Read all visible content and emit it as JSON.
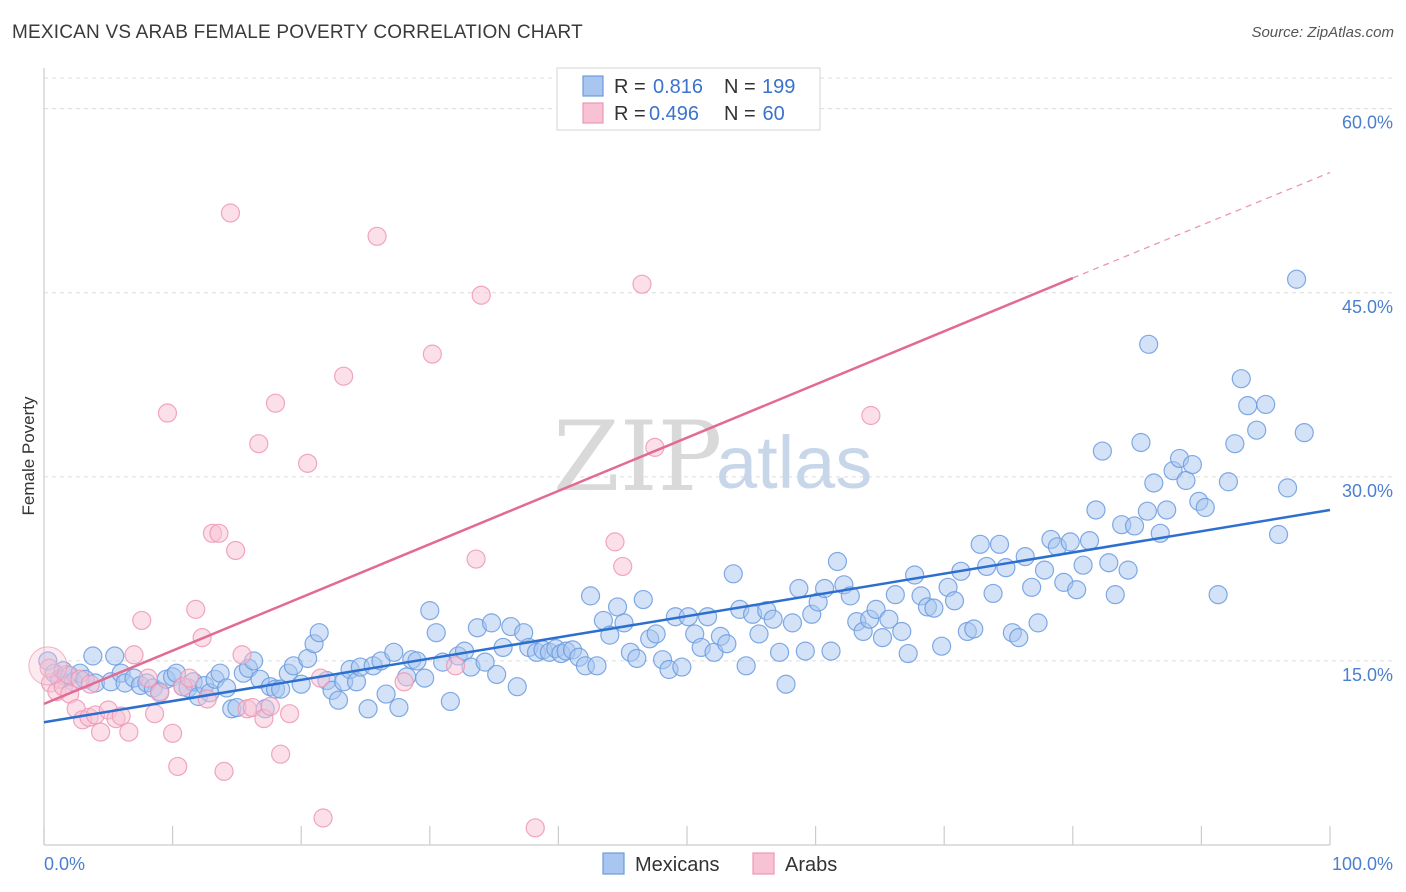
{
  "title": "MEXICAN VS ARAB FEMALE POVERTY CORRELATION CHART",
  "source": "Source: ZipAtlas.com",
  "watermark": {
    "part1": "ZIP",
    "part2": "atlas"
  },
  "chart_data": {
    "type": "scatter",
    "ylabel": "Female Poverty",
    "xlim": [
      0,
      100
    ],
    "ylim": [
      0,
      62.5
    ],
    "x_tick_labels": {
      "min": "0.0%",
      "max": "100.0%"
    },
    "y_ticks": [
      {
        "value": 15,
        "label": "15.0%"
      },
      {
        "value": 30,
        "label": "30.0%"
      },
      {
        "value": 45,
        "label": "45.0%"
      },
      {
        "value": 60,
        "label": "60.0%"
      }
    ],
    "grid": true,
    "legend_position": "top-center",
    "legend_stats": [
      {
        "r_label": "R = ",
        "r_value": "0.816",
        "n_label": "N = ",
        "n_value": "199"
      },
      {
        "r_label": "R = ",
        "r_value": "0.496",
        "n_label": "N = ",
        "n_value": " 60"
      }
    ],
    "series": [
      {
        "name": "Mexicans",
        "color": "#6b9be0",
        "fill": "#a8c6f0",
        "trend": {
          "x": [
            0,
            100
          ],
          "y": [
            10.0,
            27.3
          ],
          "color": "#2c6fcf"
        },
        "points": [
          [
            0.3,
            15.0
          ],
          [
            0.8,
            14.0
          ],
          [
            1.2,
            13.5
          ],
          [
            1.5,
            14.2
          ],
          [
            2.0,
            13.8
          ],
          [
            2.3,
            13.3
          ],
          [
            2.8,
            14.0
          ],
          [
            3.2,
            13.5
          ],
          [
            4.0,
            13.2
          ],
          [
            3.8,
            15.4
          ],
          [
            5.2,
            13.3
          ],
          [
            5.5,
            15.4
          ],
          [
            6.0,
            14.0
          ],
          [
            6.3,
            13.2
          ],
          [
            7.0,
            13.6
          ],
          [
            7.5,
            13.0
          ],
          [
            8.0,
            13.2
          ],
          [
            8.5,
            12.8
          ],
          [
            9.0,
            12.5
          ],
          [
            9.5,
            13.5
          ],
          [
            10.0,
            13.7
          ],
          [
            10.3,
            14.0
          ],
          [
            10.8,
            12.9
          ],
          [
            11.2,
            12.8
          ],
          [
            11.6,
            13.3
          ],
          [
            12.0,
            12.1
          ],
          [
            12.5,
            13.0
          ],
          [
            12.9,
            12.4
          ],
          [
            13.3,
            13.5
          ],
          [
            13.7,
            14.0
          ],
          [
            14.2,
            12.8
          ],
          [
            14.6,
            11.1
          ],
          [
            15.0,
            11.2
          ],
          [
            15.5,
            14.0
          ],
          [
            15.9,
            14.4
          ],
          [
            16.3,
            15.0
          ],
          [
            16.8,
            13.5
          ],
          [
            17.2,
            11.1
          ],
          [
            17.6,
            12.9
          ],
          [
            18.0,
            12.7
          ],
          [
            18.4,
            12.7
          ],
          [
            19.0,
            14.0
          ],
          [
            19.4,
            14.6
          ],
          [
            20.0,
            13.1
          ],
          [
            20.5,
            15.2
          ],
          [
            21.0,
            16.4
          ],
          [
            21.4,
            17.3
          ],
          [
            22.0,
            13.4
          ],
          [
            22.4,
            12.6
          ],
          [
            22.9,
            11.8
          ],
          [
            23.3,
            13.3
          ],
          [
            23.8,
            14.3
          ],
          [
            24.3,
            13.3
          ],
          [
            24.6,
            14.5
          ],
          [
            25.2,
            11.1
          ],
          [
            25.6,
            14.6
          ],
          [
            26.2,
            15.0
          ],
          [
            26.6,
            12.3
          ],
          [
            27.2,
            15.7
          ],
          [
            27.6,
            11.2
          ],
          [
            28.2,
            13.7
          ],
          [
            28.6,
            15.1
          ],
          [
            29.0,
            15.0
          ],
          [
            29.6,
            13.6
          ],
          [
            30.0,
            19.1
          ],
          [
            30.5,
            17.3
          ],
          [
            31.0,
            14.9
          ],
          [
            31.6,
            11.7
          ],
          [
            32.2,
            15.4
          ],
          [
            32.7,
            15.8
          ],
          [
            33.2,
            14.5
          ],
          [
            33.7,
            17.7
          ],
          [
            34.3,
            14.9
          ],
          [
            34.8,
            18.1
          ],
          [
            35.2,
            13.9
          ],
          [
            35.7,
            16.1
          ],
          [
            36.3,
            17.8
          ],
          [
            36.8,
            12.9
          ],
          [
            37.3,
            17.3
          ],
          [
            37.7,
            16.1
          ],
          [
            38.3,
            15.7
          ],
          [
            38.8,
            15.9
          ],
          [
            39.3,
            15.7
          ],
          [
            39.8,
            16.0
          ],
          [
            40.2,
            15.6
          ],
          [
            40.6,
            15.8
          ],
          [
            41.1,
            15.9
          ],
          [
            41.6,
            15.3
          ],
          [
            42.1,
            14.6
          ],
          [
            42.5,
            20.3
          ],
          [
            43.0,
            14.6
          ],
          [
            43.5,
            18.3
          ],
          [
            44.0,
            17.1
          ],
          [
            44.6,
            19.4
          ],
          [
            45.1,
            18.1
          ],
          [
            45.6,
            15.7
          ],
          [
            46.1,
            15.2
          ],
          [
            46.6,
            20.0
          ],
          [
            47.1,
            16.8
          ],
          [
            47.6,
            17.2
          ],
          [
            48.1,
            15.1
          ],
          [
            48.6,
            14.3
          ],
          [
            49.1,
            18.6
          ],
          [
            49.6,
            14.5
          ],
          [
            50.1,
            18.6
          ],
          [
            50.6,
            17.2
          ],
          [
            51.1,
            16.1
          ],
          [
            51.6,
            18.6
          ],
          [
            52.1,
            15.7
          ],
          [
            52.6,
            17.0
          ],
          [
            53.1,
            16.4
          ],
          [
            53.6,
            22.1
          ],
          [
            54.1,
            19.2
          ],
          [
            54.6,
            14.6
          ],
          [
            55.1,
            18.8
          ],
          [
            55.6,
            17.2
          ],
          [
            56.2,
            19.1
          ],
          [
            56.7,
            18.4
          ],
          [
            57.2,
            15.7
          ],
          [
            57.7,
            13.1
          ],
          [
            58.2,
            18.1
          ],
          [
            58.7,
            20.9
          ],
          [
            59.2,
            15.8
          ],
          [
            59.7,
            18.8
          ],
          [
            60.2,
            19.8
          ],
          [
            60.7,
            20.9
          ],
          [
            61.2,
            15.8
          ],
          [
            61.7,
            23.1
          ],
          [
            62.2,
            21.2
          ],
          [
            62.7,
            20.3
          ],
          [
            63.2,
            18.2
          ],
          [
            63.7,
            17.4
          ],
          [
            64.2,
            18.4
          ],
          [
            64.7,
            19.2
          ],
          [
            65.2,
            16.9
          ],
          [
            65.7,
            18.4
          ],
          [
            66.2,
            20.4
          ],
          [
            66.7,
            17.4
          ],
          [
            67.2,
            15.6
          ],
          [
            67.7,
            22.0
          ],
          [
            68.2,
            20.3
          ],
          [
            68.7,
            19.4
          ],
          [
            69.2,
            19.3
          ],
          [
            69.8,
            16.2
          ],
          [
            70.3,
            21.0
          ],
          [
            70.8,
            19.9
          ],
          [
            71.3,
            22.3
          ],
          [
            71.8,
            17.4
          ],
          [
            72.3,
            17.6
          ],
          [
            72.8,
            24.5
          ],
          [
            73.3,
            22.7
          ],
          [
            73.8,
            20.5
          ],
          [
            74.3,
            24.5
          ],
          [
            74.8,
            22.6
          ],
          [
            75.3,
            17.3
          ],
          [
            75.8,
            16.9
          ],
          [
            76.3,
            23.5
          ],
          [
            76.8,
            21.0
          ],
          [
            77.3,
            18.1
          ],
          [
            77.8,
            22.4
          ],
          [
            78.3,
            24.9
          ],
          [
            78.8,
            24.3
          ],
          [
            79.3,
            21.4
          ],
          [
            79.8,
            24.7
          ],
          [
            80.3,
            20.8
          ],
          [
            80.8,
            22.8
          ],
          [
            81.3,
            24.8
          ],
          [
            81.8,
            27.3
          ],
          [
            82.3,
            32.1
          ],
          [
            82.8,
            23.0
          ],
          [
            83.3,
            20.4
          ],
          [
            83.8,
            26.1
          ],
          [
            84.3,
            22.4
          ],
          [
            84.8,
            26.0
          ],
          [
            85.3,
            32.8
          ],
          [
            85.8,
            27.2
          ],
          [
            86.3,
            29.5
          ],
          [
            86.8,
            25.4
          ],
          [
            87.3,
            27.3
          ],
          [
            87.8,
            30.5
          ],
          [
            88.3,
            31.5
          ],
          [
            88.8,
            29.7
          ],
          [
            89.3,
            31.0
          ],
          [
            89.8,
            28.0
          ],
          [
            90.3,
            27.5
          ],
          [
            91.3,
            20.4
          ],
          [
            92.1,
            29.6
          ],
          [
            92.6,
            32.7
          ],
          [
            93.1,
            38.0
          ],
          [
            93.6,
            35.8
          ],
          [
            94.3,
            33.8
          ],
          [
            95.0,
            35.9
          ],
          [
            96.0,
            25.3
          ],
          [
            96.7,
            29.1
          ],
          [
            97.4,
            46.1
          ],
          [
            98.0,
            33.6
          ],
          [
            85.9,
            40.8
          ]
        ]
      },
      {
        "name": "Arabs",
        "color": "#ee96b4",
        "fill": "#f7c2d4",
        "trend": {
          "x": [
            0,
            80
          ],
          "y": [
            11.5,
            46.2
          ],
          "extended_x": [
            80,
            100
          ],
          "extended_y": [
            46.2,
            54.8
          ],
          "color": "#e26a93"
        },
        "points": [
          [
            0.5,
            13.2
          ],
          [
            1.0,
            12.5
          ],
          [
            1.5,
            12.9
          ],
          [
            2.0,
            12.3
          ],
          [
            2.5,
            11.1
          ],
          [
            3.0,
            10.2
          ],
          [
            3.5,
            10.4
          ],
          [
            4.0,
            10.6
          ],
          [
            4.4,
            9.2
          ],
          [
            5.0,
            11.0
          ],
          [
            5.6,
            10.3
          ],
          [
            6.0,
            10.5
          ],
          [
            6.6,
            9.2
          ],
          [
            7.0,
            15.5
          ],
          [
            7.6,
            18.3
          ],
          [
            8.1,
            13.6
          ],
          [
            8.6,
            10.7
          ],
          [
            9.0,
            12.4
          ],
          [
            9.6,
            35.2
          ],
          [
            10.0,
            9.1
          ],
          [
            10.4,
            6.4
          ],
          [
            10.8,
            12.9
          ],
          [
            11.3,
            13.6
          ],
          [
            11.8,
            19.2
          ],
          [
            12.3,
            16.9
          ],
          [
            12.7,
            11.9
          ],
          [
            13.1,
            25.4
          ],
          [
            13.6,
            25.4
          ],
          [
            14.0,
            6.0
          ],
          [
            14.5,
            51.5
          ],
          [
            14.9,
            24.0
          ],
          [
            15.4,
            15.5
          ],
          [
            15.8,
            11.1
          ],
          [
            16.2,
            11.2
          ],
          [
            16.7,
            32.7
          ],
          [
            17.1,
            10.3
          ],
          [
            17.6,
            11.3
          ],
          [
            18.0,
            36.0
          ],
          [
            18.4,
            7.4
          ],
          [
            19.1,
            10.7
          ],
          [
            20.5,
            31.1
          ],
          [
            21.7,
            2.2
          ],
          [
            21.5,
            13.6
          ],
          [
            23.3,
            38.2
          ],
          [
            25.9,
            49.6
          ],
          [
            28.0,
            13.3
          ],
          [
            30.2,
            40.0
          ],
          [
            32.0,
            14.6
          ],
          [
            33.6,
            23.3
          ],
          [
            34.0,
            44.8
          ],
          [
            38.2,
            1.4
          ],
          [
            44.4,
            24.7
          ],
          [
            45.0,
            22.7
          ],
          [
            46.5,
            45.7
          ],
          [
            47.5,
            32.4
          ],
          [
            64.3,
            35.0
          ],
          [
            0.4,
            14.4
          ],
          [
            1.8,
            13.9
          ],
          [
            2.8,
            13.5
          ],
          [
            3.6,
            13.1
          ]
        ]
      }
    ]
  }
}
